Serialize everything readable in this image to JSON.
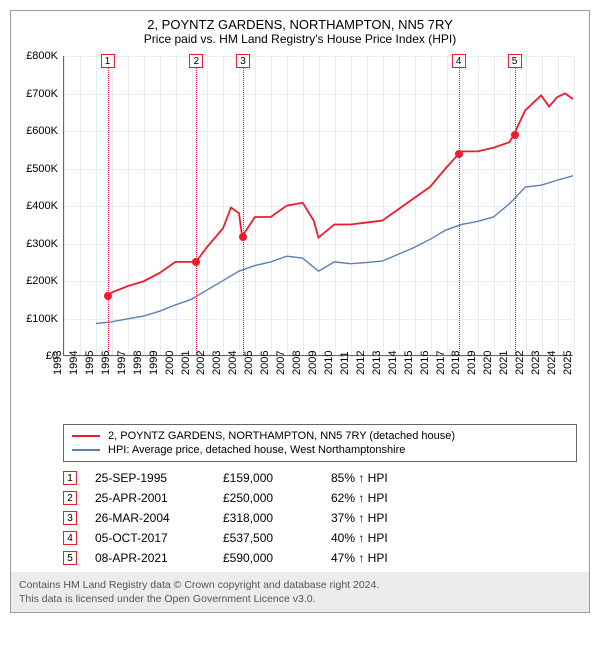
{
  "title_line1": "2, POYNTZ GARDENS, NORTHAMPTON, NN5 7RY",
  "title_line2": "Price paid vs. HM Land Registry's House Price Index (HPI)",
  "chart": {
    "type": "line",
    "background_color": "#ffffff",
    "grid_color": "#e9edf3",
    "axis_color": "#666666",
    "label_fontsize": 11,
    "x_years": [
      1993,
      1994,
      1995,
      1996,
      1997,
      1998,
      1999,
      2000,
      2001,
      2002,
      2003,
      2004,
      2005,
      2006,
      2007,
      2008,
      2009,
      2010,
      2011,
      2012,
      2013,
      2014,
      2015,
      2016,
      2017,
      2018,
      2019,
      2020,
      2021,
      2022,
      2023,
      2024,
      2025
    ],
    "xlim": [
      1993,
      2025
    ],
    "ylim": [
      0,
      800000
    ],
    "ytick_step": 100000,
    "ytick_labels": [
      "£0",
      "£100K",
      "£200K",
      "£300K",
      "£400K",
      "£500K",
      "£600K",
      "£700K",
      "£800K"
    ],
    "series": [
      {
        "name": "red",
        "label": "2, POYNTZ GARDENS, NORTHAMPTON, NN5 7RY (detached house)",
        "color": "#ee1b2e",
        "line_width": 1.8,
        "points": [
          [
            1995.7,
            159000
          ],
          [
            1996,
            168000
          ],
          [
            1997,
            185000
          ],
          [
            1998,
            198000
          ],
          [
            1999,
            220000
          ],
          [
            2000,
            250000
          ],
          [
            2001.3,
            250000
          ],
          [
            2002,
            290000
          ],
          [
            2003,
            340000
          ],
          [
            2003.5,
            395000
          ],
          [
            2004,
            380000
          ],
          [
            2004.2,
            318000
          ],
          [
            2005,
            370000
          ],
          [
            2006,
            370000
          ],
          [
            2007,
            400000
          ],
          [
            2008,
            408000
          ],
          [
            2008.7,
            360000
          ],
          [
            2009,
            315000
          ],
          [
            2010,
            350000
          ],
          [
            2011,
            350000
          ],
          [
            2012,
            355000
          ],
          [
            2013,
            360000
          ],
          [
            2014,
            390000
          ],
          [
            2015,
            420000
          ],
          [
            2016,
            450000
          ],
          [
            2017,
            500000
          ],
          [
            2017.8,
            537500
          ],
          [
            2018,
            545000
          ],
          [
            2019,
            545000
          ],
          [
            2020,
            555000
          ],
          [
            2021,
            570000
          ],
          [
            2021.3,
            590000
          ],
          [
            2021.5,
            610000
          ],
          [
            2022,
            655000
          ],
          [
            2023,
            695000
          ],
          [
            2023.5,
            665000
          ],
          [
            2024,
            690000
          ],
          [
            2024.5,
            700000
          ],
          [
            2025,
            685000
          ]
        ]
      },
      {
        "name": "blue",
        "label": "HPI: Average price, detached house, West Northamptonshire",
        "color": "#5b7fb5",
        "line_width": 1.4,
        "points": [
          [
            1995,
            85000
          ],
          [
            1996,
            90000
          ],
          [
            1997,
            98000
          ],
          [
            1998,
            105000
          ],
          [
            1999,
            118000
          ],
          [
            2000,
            135000
          ],
          [
            2001,
            150000
          ],
          [
            2002,
            175000
          ],
          [
            2003,
            200000
          ],
          [
            2004,
            225000
          ],
          [
            2005,
            240000
          ],
          [
            2006,
            250000
          ],
          [
            2007,
            265000
          ],
          [
            2008,
            260000
          ],
          [
            2009,
            225000
          ],
          [
            2010,
            250000
          ],
          [
            2011,
            245000
          ],
          [
            2012,
            248000
          ],
          [
            2013,
            252000
          ],
          [
            2014,
            270000
          ],
          [
            2015,
            288000
          ],
          [
            2016,
            310000
          ],
          [
            2017,
            335000
          ],
          [
            2018,
            350000
          ],
          [
            2019,
            358000
          ],
          [
            2020,
            370000
          ],
          [
            2021,
            405000
          ],
          [
            2022,
            450000
          ],
          [
            2023,
            455000
          ],
          [
            2024,
            468000
          ],
          [
            2025,
            480000
          ]
        ]
      }
    ],
    "markers": [
      {
        "n": "1",
        "year": 1995.73,
        "price": 159000
      },
      {
        "n": "2",
        "year": 2001.31,
        "price": 250000
      },
      {
        "n": "3",
        "year": 2004.23,
        "price": 318000
      },
      {
        "n": "4",
        "year": 2017.76,
        "price": 537500
      },
      {
        "n": "5",
        "year": 2021.27,
        "price": 590000
      }
    ],
    "marker_color": "#ee1b2e",
    "marker_box_size": 14
  },
  "legend": {
    "items": [
      {
        "color": "#ee1b2e",
        "label": "2, POYNTZ GARDENS, NORTHAMPTON, NN5 7RY (detached house)"
      },
      {
        "color": "#5b7fb5",
        "label": "HPI: Average price, detached house, West Northamptonshire"
      }
    ]
  },
  "table": {
    "rows": [
      {
        "n": "1",
        "date": "25-SEP-1995",
        "price": "£159,000",
        "pct": "85% ↑ HPI"
      },
      {
        "n": "2",
        "date": "25-APR-2001",
        "price": "£250,000",
        "pct": "62% ↑ HPI"
      },
      {
        "n": "3",
        "date": "26-MAR-2004",
        "price": "£318,000",
        "pct": "37% ↑ HPI"
      },
      {
        "n": "4",
        "date": "05-OCT-2017",
        "price": "£537,500",
        "pct": "40% ↑ HPI"
      },
      {
        "n": "5",
        "date": "08-APR-2021",
        "price": "£590,000",
        "pct": "47% ↑ HPI"
      }
    ]
  },
  "footer_line1": "Contains HM Land Registry data © Crown copyright and database right 2024.",
  "footer_line2": "This data is licensed under the Open Government Licence v3.0."
}
